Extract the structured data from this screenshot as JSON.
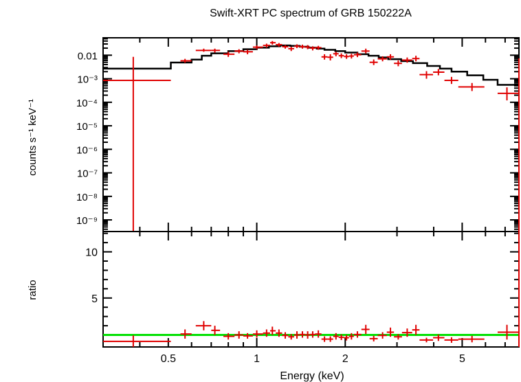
{
  "chart_data": [
    {
      "type": "scatter",
      "title": "Swift-XRT PC spectrum of GRB 150222A",
      "ylabel": "counts s⁻¹ keV⁻¹",
      "xlabel": "Energy (keV)",
      "xscale": "log",
      "yscale": "log",
      "xlim": [
        0.3,
        7.8
      ],
      "ylim": [
        3.2e-10,
        0.055
      ],
      "grid": false,
      "ytick_labels": [
        {
          "value": 0.01,
          "label": "0.01"
        },
        {
          "value": 0.001,
          "label": "10⁻³"
        },
        {
          "value": 0.0001,
          "label": "10⁻⁴"
        },
        {
          "value": 1e-05,
          "label": "10⁻⁵"
        },
        {
          "value": 1e-06,
          "label": "10⁻⁶"
        },
        {
          "value": 1e-07,
          "label": "10⁻⁷"
        },
        {
          "value": 1e-08,
          "label": "10⁻⁸"
        },
        {
          "value": 1e-09,
          "label": "10⁻⁹"
        }
      ],
      "series": [
        {
          "color": "#e00000",
          "points": [
            [
              0.38,
              0.00085,
              0.3,
              0.51,
              3.2e-10,
              0.0085
            ],
            [
              0.57,
              0.0058,
              0.55,
              0.6,
              0.0048,
              0.007
            ],
            [
              0.66,
              0.016,
              0.62,
              0.7,
              0.014,
              0.019
            ],
            [
              0.72,
              0.016,
              0.7,
              0.75,
              0.013,
              0.019
            ],
            [
              0.8,
              0.011,
              0.77,
              0.84,
              0.0085,
              0.014
            ],
            [
              0.87,
              0.015,
              0.84,
              0.9,
              0.012,
              0.018
            ],
            [
              0.93,
              0.014,
              0.9,
              0.97,
              0.011,
              0.017
            ],
            [
              1.0,
              0.022,
              0.97,
              1.05,
              0.018,
              0.026
            ],
            [
              1.08,
              0.026,
              1.05,
              1.11,
              0.021,
              0.031
            ],
            [
              1.13,
              0.034,
              1.11,
              1.16,
              0.028,
              0.04
            ],
            [
              1.19,
              0.028,
              1.16,
              1.22,
              0.023,
              0.033
            ],
            [
              1.25,
              0.023,
              1.22,
              1.28,
              0.019,
              0.027
            ],
            [
              1.31,
              0.019,
              1.28,
              1.34,
              0.015,
              0.023
            ],
            [
              1.37,
              0.024,
              1.34,
              1.4,
              0.02,
              0.029
            ],
            [
              1.43,
              0.023,
              1.4,
              1.46,
              0.019,
              0.028
            ],
            [
              1.49,
              0.022,
              1.46,
              1.52,
              0.018,
              0.027
            ],
            [
              1.55,
              0.02,
              1.52,
              1.58,
              0.016,
              0.024
            ],
            [
              1.62,
              0.021,
              1.58,
              1.66,
              0.017,
              0.025
            ],
            [
              1.7,
              0.0085,
              1.66,
              1.74,
              0.0065,
              0.011
            ],
            [
              1.78,
              0.0082,
              1.74,
              1.82,
              0.006,
              0.011
            ],
            [
              1.86,
              0.0115,
              1.82,
              1.9,
              0.009,
              0.014
            ],
            [
              1.94,
              0.0095,
              1.9,
              1.98,
              0.0075,
              0.012
            ],
            [
              2.02,
              0.0088,
              1.98,
              2.06,
              0.007,
              0.011
            ],
            [
              2.1,
              0.0092,
              2.06,
              2.14,
              0.0072,
              0.0115
            ],
            [
              2.2,
              0.0105,
              2.14,
              2.27,
              0.0083,
              0.013
            ],
            [
              2.35,
              0.015,
              2.27,
              2.42,
              0.012,
              0.019
            ],
            [
              2.5,
              0.005,
              2.42,
              2.58,
              0.0038,
              0.0066
            ],
            [
              2.68,
              0.007,
              2.58,
              2.77,
              0.0055,
              0.009
            ],
            [
              2.85,
              0.0085,
              2.77,
              2.93,
              0.0065,
              0.011
            ],
            [
              3.03,
              0.0045,
              2.93,
              3.12,
              0.0034,
              0.006
            ],
            [
              3.25,
              0.0062,
              3.12,
              3.38,
              0.0048,
              0.008
            ],
            [
              3.48,
              0.0072,
              3.38,
              3.58,
              0.0055,
              0.0095
            ],
            [
              3.78,
              0.0015,
              3.58,
              3.98,
              0.001,
              0.0021
            ],
            [
              4.15,
              0.0019,
              3.98,
              4.35,
              0.0014,
              0.0026
            ],
            [
              4.6,
              0.00085,
              4.35,
              4.85,
              0.0006,
              0.0012
            ],
            [
              5.4,
              0.00045,
              4.85,
              5.95,
              0.0003,
              0.00066
            ],
            [
              7.1,
              0.00024,
              6.6,
              7.8,
              0.00012,
              0.00043
            ]
          ]
        },
        {
          "color": "#000000",
          "model_steps": [
            [
              0.3,
              0.0027
            ],
            [
              0.51,
              0.0049
            ],
            [
              0.6,
              0.0065
            ],
            [
              0.65,
              0.0095
            ],
            [
              0.7,
              0.012
            ],
            [
              0.8,
              0.015
            ],
            [
              0.9,
              0.018
            ],
            [
              1.0,
              0.021
            ],
            [
              1.1,
              0.024
            ],
            [
              1.2,
              0.026
            ],
            [
              1.3,
              0.025
            ],
            [
              1.4,
              0.023
            ],
            [
              1.5,
              0.021
            ],
            [
              1.6,
              0.019
            ],
            [
              1.7,
              0.017
            ],
            [
              1.85,
              0.015
            ],
            [
              2.0,
              0.013
            ],
            [
              2.2,
              0.011
            ],
            [
              2.4,
              0.0095
            ],
            [
              2.6,
              0.008
            ],
            [
              2.8,
              0.0068
            ],
            [
              3.1,
              0.0056
            ],
            [
              3.4,
              0.0046
            ],
            [
              3.8,
              0.0035
            ],
            [
              4.2,
              0.0027
            ],
            [
              4.6,
              0.002
            ],
            [
              5.2,
              0.0014
            ],
            [
              5.9,
              0.0009
            ],
            [
              6.6,
              0.00055
            ],
            [
              7.8,
              0.00055
            ]
          ]
        }
      ]
    },
    {
      "type": "scatter",
      "ylabel": "ratio",
      "xlabel": "Energy (keV)",
      "xscale": "log",
      "xlim": [
        0.3,
        7.8
      ],
      "ylim": [
        -0.3,
        12.2
      ],
      "grid": false,
      "yticks": [
        5,
        10
      ],
      "xticks": [
        0.5,
        1,
        2,
        5
      ],
      "xtick_labels": [
        "0.5",
        "1",
        "2",
        "5"
      ],
      "reference_line": {
        "value": 1,
        "color": "#00e000"
      },
      "series": [
        {
          "color": "#e00000",
          "points": [
            [
              0.38,
              0.3,
              0.3,
              0.51,
              -0.3,
              0.95
            ],
            [
              0.57,
              1.1,
              0.55,
              0.6,
              0.6,
              1.6
            ],
            [
              0.66,
              2.0,
              0.62,
              0.7,
              1.5,
              2.5
            ],
            [
              0.72,
              1.5,
              0.7,
              0.75,
              1.0,
              2.0
            ],
            [
              0.8,
              0.85,
              0.77,
              0.84,
              0.5,
              1.2
            ],
            [
              0.87,
              1.0,
              0.84,
              0.9,
              0.6,
              1.4
            ],
            [
              0.93,
              0.9,
              0.9,
              0.97,
              0.6,
              1.2
            ],
            [
              1.0,
              1.1,
              0.97,
              1.05,
              0.7,
              1.5
            ],
            [
              1.08,
              1.2,
              1.05,
              1.11,
              0.8,
              1.6
            ],
            [
              1.13,
              1.45,
              1.11,
              1.16,
              1.0,
              1.9
            ],
            [
              1.19,
              1.2,
              1.16,
              1.22,
              0.8,
              1.6
            ],
            [
              1.25,
              0.95,
              1.22,
              1.28,
              0.6,
              1.3
            ],
            [
              1.31,
              0.8,
              1.28,
              1.34,
              0.5,
              1.1
            ],
            [
              1.37,
              1.0,
              1.34,
              1.4,
              0.6,
              1.4
            ],
            [
              1.43,
              1.05,
              1.4,
              1.46,
              0.7,
              1.4
            ],
            [
              1.49,
              1.0,
              1.46,
              1.52,
              0.6,
              1.4
            ],
            [
              1.55,
              1.05,
              1.52,
              1.58,
              0.7,
              1.4
            ],
            [
              1.62,
              1.1,
              1.58,
              1.66,
              0.7,
              1.5
            ],
            [
              1.7,
              0.55,
              1.66,
              1.74,
              0.25,
              0.85
            ],
            [
              1.78,
              0.55,
              1.74,
              1.82,
              0.25,
              0.85
            ],
            [
              1.86,
              0.85,
              1.82,
              1.9,
              0.5,
              1.2
            ],
            [
              1.94,
              0.75,
              1.9,
              1.98,
              0.45,
              1.05
            ],
            [
              2.02,
              0.7,
              1.98,
              2.06,
              0.4,
              1.0
            ],
            [
              2.1,
              0.85,
              2.06,
              2.14,
              0.5,
              1.2
            ],
            [
              2.2,
              1.05,
              2.14,
              2.27,
              0.7,
              1.4
            ],
            [
              2.35,
              1.6,
              2.27,
              2.42,
              1.1,
              2.1
            ],
            [
              2.5,
              0.6,
              2.42,
              2.58,
              0.3,
              0.9
            ],
            [
              2.68,
              0.95,
              2.58,
              2.77,
              0.6,
              1.3
            ],
            [
              2.85,
              1.3,
              2.77,
              2.93,
              0.8,
              1.8
            ],
            [
              3.03,
              0.8,
              2.93,
              3.12,
              0.5,
              1.1
            ],
            [
              3.25,
              1.25,
              3.12,
              3.38,
              0.8,
              1.7
            ],
            [
              3.48,
              1.55,
              3.38,
              3.58,
              1.0,
              2.1
            ],
            [
              3.78,
              0.45,
              3.58,
              3.98,
              0.2,
              0.7
            ],
            [
              4.15,
              0.7,
              3.98,
              4.35,
              0.35,
              1.05
            ],
            [
              4.6,
              0.45,
              4.35,
              4.85,
              0.15,
              0.75
            ],
            [
              5.4,
              0.55,
              4.85,
              5.95,
              0.2,
              0.9
            ],
            [
              7.1,
              1.3,
              6.6,
              7.8,
              0.5,
              2.1
            ]
          ]
        }
      ]
    }
  ]
}
